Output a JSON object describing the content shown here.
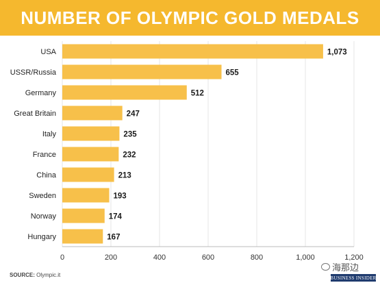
{
  "chart_data": {
    "type": "bar",
    "orientation": "horizontal",
    "title": "NUMBER OF OLYMPIC GOLD MEDALS",
    "categories": [
      "USA",
      "USSR/Russia",
      "Germany",
      "Great Britain",
      "Italy",
      "France",
      "China",
      "Sweden",
      "Norway",
      "Hungary"
    ],
    "values": [
      1073,
      655,
      512,
      247,
      235,
      232,
      213,
      193,
      174,
      167
    ],
    "value_labels": [
      "1,073",
      "655",
      "512",
      "247",
      "235",
      "232",
      "213",
      "193",
      "174",
      "167"
    ],
    "x_ticks": [
      0,
      200,
      400,
      600,
      800,
      1000,
      1200
    ],
    "x_tick_labels": [
      "0",
      "200",
      "400",
      "600",
      "800",
      "1,000",
      "1,200"
    ],
    "xlim": [
      0,
      1200
    ],
    "grid": true,
    "bar_color": "#f7c04a",
    "title_bg_color": "#f5b82e",
    "grid_color": "#e4e4e4"
  },
  "footer": {
    "source_label": "SOURCE:",
    "source_text": "Olympic.it",
    "wechat_text": "海那边",
    "brand_text": "BUSINESS INSIDER"
  }
}
